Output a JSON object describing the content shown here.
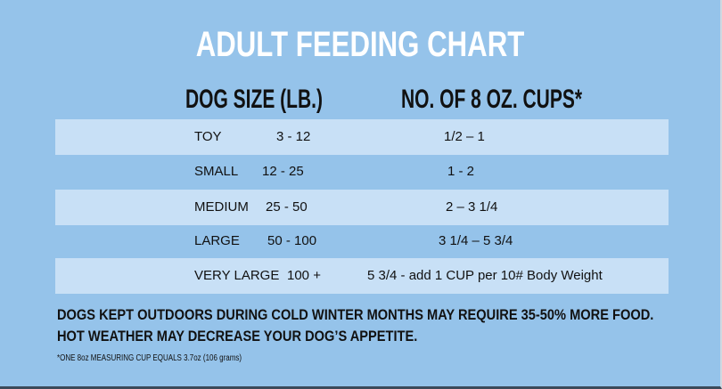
{
  "title": "ADULT FEEDING CHART",
  "headers": {
    "size": "DOG SIZE  (LB.)",
    "cups": "NO. OF 8 OZ. CUPS*"
  },
  "rows": [
    {
      "size": "TOY",
      "weight": "3 -  12",
      "cups": "1/2 –  1"
    },
    {
      "size": "SMALL",
      "weight": "12 -  25",
      "cups": "1 - 2"
    },
    {
      "size": "MEDIUM",
      "weight": "25 -  50",
      "cups": "2 – 3 1/4"
    },
    {
      "size": "LARGE",
      "weight": "50 - 100",
      "cups": "3 1/4 – 5 3/4"
    },
    {
      "size": "VERY LARGE",
      "weight": "100 +",
      "cups": "5 3/4  -  add 1 CUP per 10# Body Weight"
    }
  ],
  "notes": [
    "DOGS KEPT OUTDOORS DURING COLD WINTER MONTHS MAY REQUIRE 35-50% MORE FOOD.",
    "HOT WEATHER MAY DECREASE YOUR DOG’S APPETITE."
  ],
  "footnote": "*ONE 8oz MEASURING CUP EQUALS 3.7oz (106 grams)"
}
